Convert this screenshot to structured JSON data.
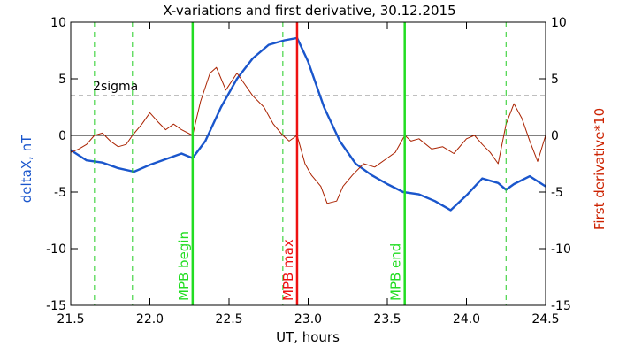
{
  "chart_data": {
    "type": "line",
    "title": "X-variations and first derivative, 30.12.2015",
    "xlabel": "UT, hours",
    "ylabel_left": "deltaX, nT",
    "ylabel_right": "First derivative*10",
    "xlim": [
      21.5,
      24.5
    ],
    "ylim": [
      -15,
      10
    ],
    "x_ticks": [
      21.5,
      22.0,
      22.5,
      23.0,
      23.5,
      24.0,
      24.5
    ],
    "x_tick_labels": [
      "21.5",
      "22.0",
      "22.5",
      "23.0",
      "23.5",
      "24.0",
      "24.5"
    ],
    "y_ticks": [
      -15,
      -10,
      -5,
      0,
      5,
      10
    ],
    "y_tick_labels_left": [
      "-15",
      "-10",
      "-5",
      "0",
      "5",
      "10"
    ],
    "y_tick_labels_right": [
      "-15",
      "-10",
      "-5",
      "0",
      "5",
      "10"
    ],
    "grid": false,
    "reference_lines": [
      {
        "y": 3.5,
        "style": "dashed",
        "color": "#000000",
        "label": "2sigma"
      },
      {
        "y": 0,
        "style": "solid",
        "color": "#000000"
      }
    ],
    "vertical_markers": [
      {
        "x": 21.65,
        "style": "dashed",
        "color": "#22cc22"
      },
      {
        "x": 21.89,
        "style": "dashed",
        "color": "#22cc22"
      },
      {
        "x": 22.27,
        "style": "solid",
        "color": "#22dd22",
        "label": "MPB begin"
      },
      {
        "x": 22.84,
        "style": "dashed",
        "color": "#22cc22"
      },
      {
        "x": 22.93,
        "style": "solid",
        "color": "#ee1111",
        "label": "MPB max"
      },
      {
        "x": 23.61,
        "style": "solid",
        "color": "#22dd22",
        "label": "MPB end"
      },
      {
        "x": 24.25,
        "style": "dashed",
        "color": "#22cc22"
      }
    ],
    "series": [
      {
        "axis": "left",
        "color": "#1a56cc",
        "x": [
          21.5,
          21.6,
          21.7,
          21.8,
          21.9,
          22.0,
          22.1,
          22.2,
          22.27,
          22.35,
          22.45,
          22.55,
          22.65,
          22.75,
          22.85,
          22.93,
          23.0,
          23.1,
          23.2,
          23.3,
          23.4,
          23.5,
          23.6,
          23.7,
          23.8,
          23.9,
          24.0,
          24.1,
          24.2,
          24.25,
          24.3,
          24.4,
          24.5
        ],
        "values": [
          -1.3,
          -2.2,
          -2.4,
          -2.9,
          -3.2,
          -2.6,
          -2.1,
          -1.6,
          -2.0,
          -0.5,
          2.5,
          5.0,
          6.8,
          8.0,
          8.4,
          8.6,
          6.5,
          2.5,
          -0.5,
          -2.5,
          -3.5,
          -4.3,
          -5.0,
          -5.2,
          -5.8,
          -6.6,
          -5.3,
          -3.8,
          -4.2,
          -4.8,
          -4.3,
          -3.6,
          -4.5
        ]
      },
      {
        "axis": "right",
        "color": "#aa2200",
        "x": [
          21.5,
          21.55,
          21.6,
          21.65,
          21.7,
          21.75,
          21.8,
          21.85,
          21.89,
          21.95,
          22.0,
          22.05,
          22.1,
          22.15,
          22.2,
          22.27,
          22.32,
          22.38,
          22.42,
          22.48,
          22.55,
          22.6,
          22.65,
          22.72,
          22.78,
          22.84,
          22.88,
          22.93,
          22.98,
          23.02,
          23.08,
          23.12,
          23.18,
          23.22,
          23.28,
          23.35,
          23.42,
          23.5,
          23.55,
          23.61,
          23.65,
          23.7,
          23.78,
          23.85,
          23.92,
          24.0,
          24.05,
          24.1,
          24.15,
          24.2,
          24.25,
          24.3,
          24.35,
          24.4,
          24.45,
          24.5
        ],
        "values": [
          -1.5,
          -1.2,
          -0.8,
          0.0,
          0.2,
          -0.5,
          -1.0,
          -0.8,
          0.0,
          1.0,
          2.0,
          1.2,
          0.5,
          1.0,
          0.5,
          0.0,
          3.0,
          5.5,
          6.0,
          4.0,
          5.5,
          4.5,
          3.5,
          2.5,
          1.0,
          0.0,
          -0.5,
          0.0,
          -2.5,
          -3.5,
          -4.5,
          -6.0,
          -5.8,
          -4.5,
          -3.5,
          -2.5,
          -2.8,
          -2.0,
          -1.5,
          0.0,
          -0.5,
          -0.3,
          -1.2,
          -1.0,
          -1.6,
          -0.3,
          0.0,
          -0.8,
          -1.5,
          -2.5,
          1.0,
          2.8,
          1.5,
          -0.5,
          -2.3,
          0.0
        ]
      }
    ]
  }
}
